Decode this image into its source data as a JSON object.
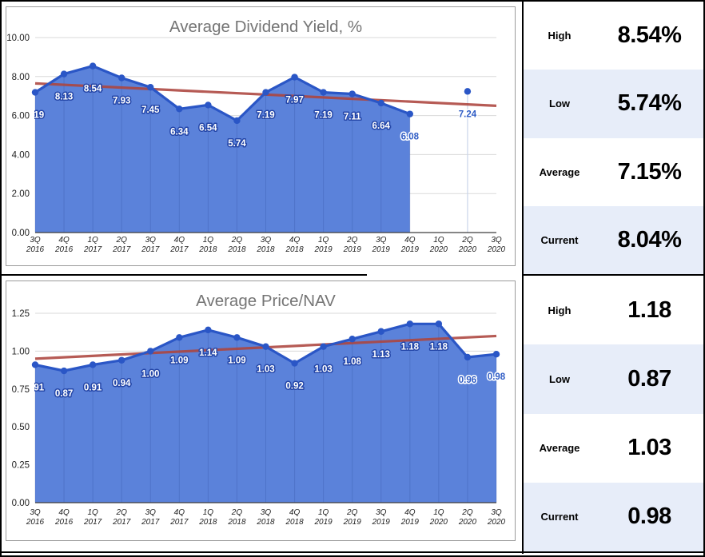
{
  "colors": {
    "area_fill": "#5b82da",
    "line": "#2a56c6",
    "trendline": "#ad453e",
    "gridline": "#dadada",
    "axis": "#3d3d3d",
    "label_halo": "#2446a8",
    "label_outside": "#2f5cc5",
    "title_color": "#757575",
    "panel_alt_bg": "#e7edf9"
  },
  "chart_data": [
    {
      "type": "area",
      "title": "Average Dividend Yield, %",
      "categories": [
        "3Q 2016",
        "4Q 2016",
        "1Q 2017",
        "2Q 2017",
        "3Q 2017",
        "4Q 2017",
        "1Q 2018",
        "2Q 2018",
        "3Q 2018",
        "4Q 2018",
        "1Q 2019",
        "2Q 2019",
        "3Q 2019",
        "4Q 2019",
        "1Q 2020",
        "2Q 2020",
        "3Q 2020"
      ],
      "values": [
        7.19,
        8.13,
        8.54,
        7.93,
        7.45,
        6.34,
        6.54,
        5.74,
        7.19,
        7.97,
        7.19,
        7.11,
        6.64,
        6.08,
        null,
        7.24,
        null
      ],
      "labels": [
        "7.19",
        "8.13",
        "8.54",
        "7.93",
        "7.45",
        "6.34",
        "6.54",
        "5.74",
        "7.19",
        "7.97",
        "7.19",
        "7.11",
        "6.64",
        "6.08",
        "",
        "7.24",
        ""
      ],
      "area_end_index": 13,
      "isolated_points": [
        15
      ],
      "outside_label_indices": [
        13,
        15
      ],
      "ylim": [
        0,
        10
      ],
      "yticks": [
        "10.00",
        "8.00",
        "6.00",
        "4.00",
        "2.00",
        "0.00"
      ],
      "trendline": {
        "start": 7.65,
        "end": 6.5
      },
      "legend": "none",
      "grid": "horizontal"
    },
    {
      "type": "area",
      "title": "Average Price/NAV",
      "categories": [
        "3Q 2016",
        "4Q 2016",
        "1Q 2017",
        "2Q 2017",
        "3Q 2017",
        "4Q 2017",
        "1Q 2018",
        "2Q 2018",
        "3Q 2018",
        "4Q 2018",
        "1Q 2019",
        "2Q 2019",
        "3Q 2019",
        "4Q 2019",
        "1Q 2020",
        "2Q 2020",
        "3Q 2020"
      ],
      "values": [
        0.91,
        0.87,
        0.91,
        0.94,
        1.0,
        1.09,
        1.14,
        1.09,
        1.03,
        0.92,
        1.03,
        1.08,
        1.13,
        1.18,
        1.18,
        0.96,
        0.98
      ],
      "labels": [
        "0.91",
        "0.87",
        "0.91",
        "0.94",
        "1.00",
        "1.09",
        "1.14",
        "1.09",
        "1.03",
        "0.92",
        "1.03",
        "1.08",
        "1.13",
        "1.18",
        "1.18",
        "0.96",
        "0.98"
      ],
      "area_end_index": 16,
      "isolated_points": [],
      "outside_label_indices": [
        15,
        16
      ],
      "ylim": [
        0,
        1.25
      ],
      "yticks": [
        "1.25",
        "1.00",
        "0.75",
        "0.50",
        "0.25",
        "0.00"
      ],
      "trendline": {
        "start": 0.95,
        "end": 1.1
      },
      "legend": "none",
      "grid": "horizontal"
    }
  ],
  "panels": [
    {
      "rows": [
        {
          "label": "High",
          "value": "8.54%"
        },
        {
          "label": "Low",
          "value": "5.74%"
        },
        {
          "label": "Average",
          "value": "7.15%"
        },
        {
          "label": "Current",
          "value": "8.04%"
        }
      ]
    },
    {
      "rows": [
        {
          "label": "High",
          "value": "1.18"
        },
        {
          "label": "Low",
          "value": "0.87"
        },
        {
          "label": "Average",
          "value": "1.03"
        },
        {
          "label": "Current",
          "value": "0.98"
        }
      ]
    }
  ]
}
